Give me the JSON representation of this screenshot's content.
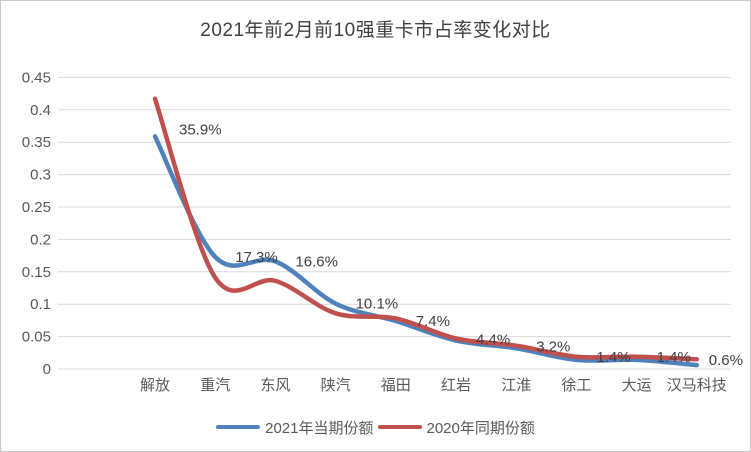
{
  "chart_data": {
    "type": "line",
    "smoothed": true,
    "title": "2021年前2月前10强重卡市占率变化对比",
    "categories": [
      "解放",
      "重汽",
      "东风",
      "陕汽",
      "福田",
      "红岩",
      "江淮",
      "徐工",
      "大运",
      "汉马科技"
    ],
    "series": [
      {
        "name": "2021年当期份额",
        "color": "#4F81BD",
        "values": [
          0.359,
          0.173,
          0.166,
          0.101,
          0.074,
          0.044,
          0.032,
          0.014,
          0.014,
          0.006
        ]
      },
      {
        "name": "2020年同期份额",
        "color": "#C0504D",
        "values": [
          0.417,
          0.141,
          0.136,
          0.086,
          0.078,
          0.047,
          0.036,
          0.019,
          0.019,
          0.015
        ]
      }
    ],
    "data_labels": [
      "35.9%",
      "17.3%",
      "16.6%",
      "10.1%",
      "7.4%",
      "4.4%",
      "3.2%",
      "1.4%",
      "1.4%",
      "0.6%"
    ],
    "y_ticks": [
      {
        "label": "0.45",
        "value": 0.45
      },
      {
        "label": "0.4",
        "value": 0.4
      },
      {
        "label": "0.35",
        "value": 0.35
      },
      {
        "label": "0.3",
        "value": 0.3
      },
      {
        "label": "0.25",
        "value": 0.25
      },
      {
        "label": "0.2",
        "value": 0.2
      },
      {
        "label": "0.15",
        "value": 0.15
      },
      {
        "label": "0.1",
        "value": 0.1
      },
      {
        "label": "0.05",
        "value": 0.05
      },
      {
        "label": "0",
        "value": 0
      }
    ],
    "ylim": [
      0,
      0.45
    ],
    "xlabel": "",
    "ylabel": "",
    "grid": "horizontal",
    "gridline_color": "#D9D9D9",
    "axis_text_color": "#595959",
    "label_text_color": "#404040",
    "legend_position": "bottom"
  }
}
